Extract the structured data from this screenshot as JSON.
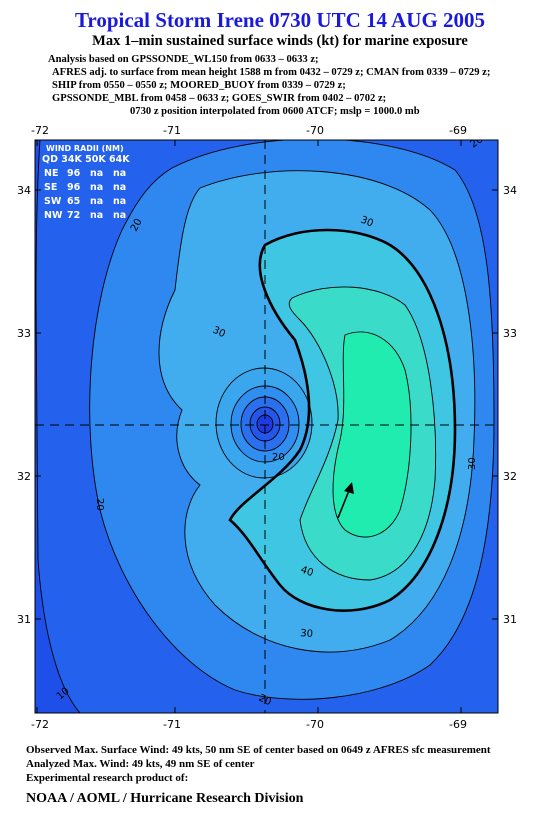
{
  "header": {
    "title": "Tropical Storm Irene 0730 UTC 14 AUG 2005",
    "subtitle": "Max 1–min sustained surface winds (kt) for marine exposure",
    "analysis_lines": [
      "Analysis based on  GPSSONDE_WL150 from 0633 – 0633 z;",
      "AFRES adj. to surface from mean height 1588 m from 0432 – 0729 z;  CMAN from 0339 – 0729 z;",
      "SHIP from 0550 – 0550 z;  MOORED_BUOY from 0339 – 0729 z;",
      "GPSSONDE_MBL from 0458 – 0633 z;  GOES_SWIR from 0402 – 0702 z;",
      "0730 z position interpolated from 0600 ATCF; mslp = 1000.0 mb"
    ]
  },
  "map": {
    "longitude_ticks": [
      "-72",
      "-71",
      "-70",
      "-69"
    ],
    "latitude_ticks": [
      "34",
      "33",
      "32",
      "31"
    ],
    "wind_radii": {
      "title": "WIND RADII (NM)",
      "header": "QD 34K 50K 64K",
      "rows": [
        {
          "qd": "NE",
          "r34": "96",
          "r50": "na",
          "r64": "na"
        },
        {
          "qd": "SE",
          "r34": "96",
          "r50": "na",
          "r64": "na"
        },
        {
          "qd": "SW",
          "r34": "65",
          "r50": "na",
          "r64": "na"
        },
        {
          "qd": "NW",
          "r34": "72",
          "r50": "na",
          "r64": "na"
        }
      ]
    },
    "contour_labels": [
      "20",
      "20",
      "20",
      "30",
      "30",
      "30",
      "30",
      "40",
      "20",
      "10",
      "20"
    ],
    "colors": {
      "deep_blue": "#1f55ee",
      "blue": "#2e86f0",
      "light_blue": "#40aaee",
      "cyan": "#3dc9e0",
      "teal": "#38dcc6",
      "green": "#22ecb0",
      "title_blue": "#1a1adc"
    }
  },
  "footer": {
    "observed": "Observed Max. Surface Wind: 49 kts, 50 nm SE of center based on 0649 z AFRES sfc measurement",
    "analyzed": "Analyzed Max. Wind: 49 kts, 49 nm SE of center",
    "experimental": "Experimental research product of:",
    "organization": "NOAA / AOML / Hurricane Research Division"
  }
}
